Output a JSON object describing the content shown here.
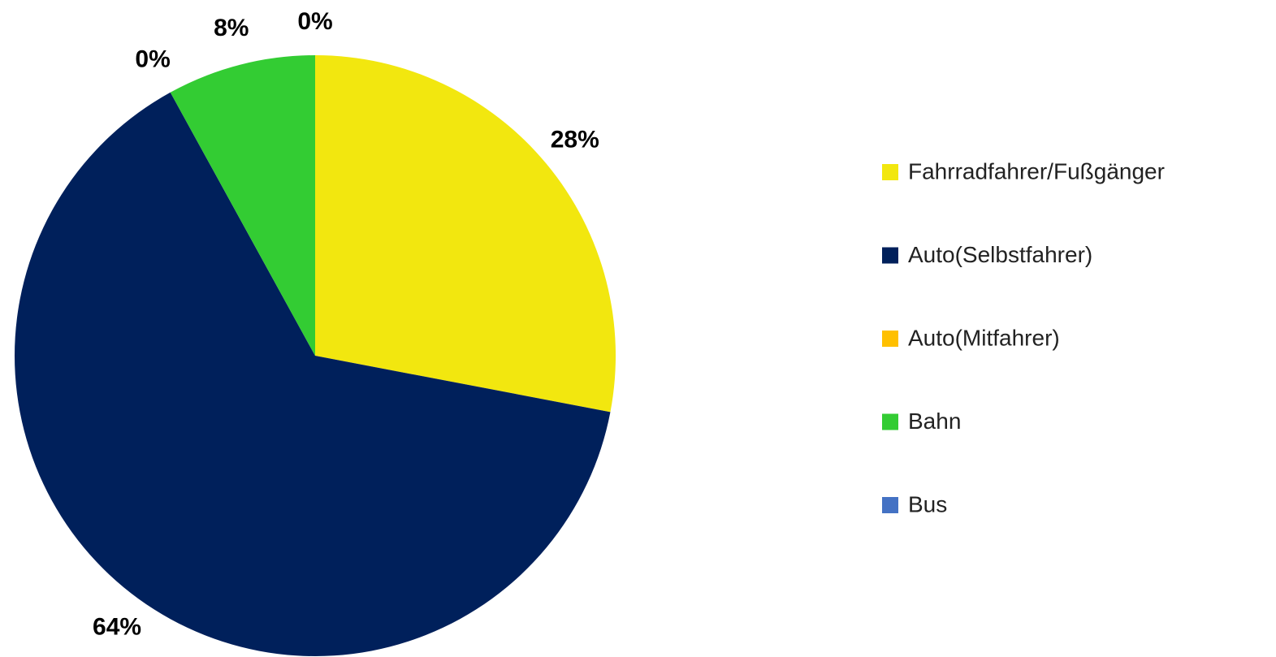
{
  "chart_data": {
    "type": "pie",
    "categories": [
      "Fahrradfahrer/Fußgänger",
      "Auto(Selbstfahrer)",
      "Auto(Mitfahrer)",
      "Bahn",
      "Bus"
    ],
    "values": [
      28,
      64,
      0,
      8,
      0
    ],
    "value_labels": [
      "28%",
      "64%",
      "0%",
      "8%",
      "0%"
    ],
    "colors": [
      "#f2e70f",
      "#00205b",
      "#ffc000",
      "#33cc33",
      "#4472c4"
    ],
    "legend": "right"
  }
}
